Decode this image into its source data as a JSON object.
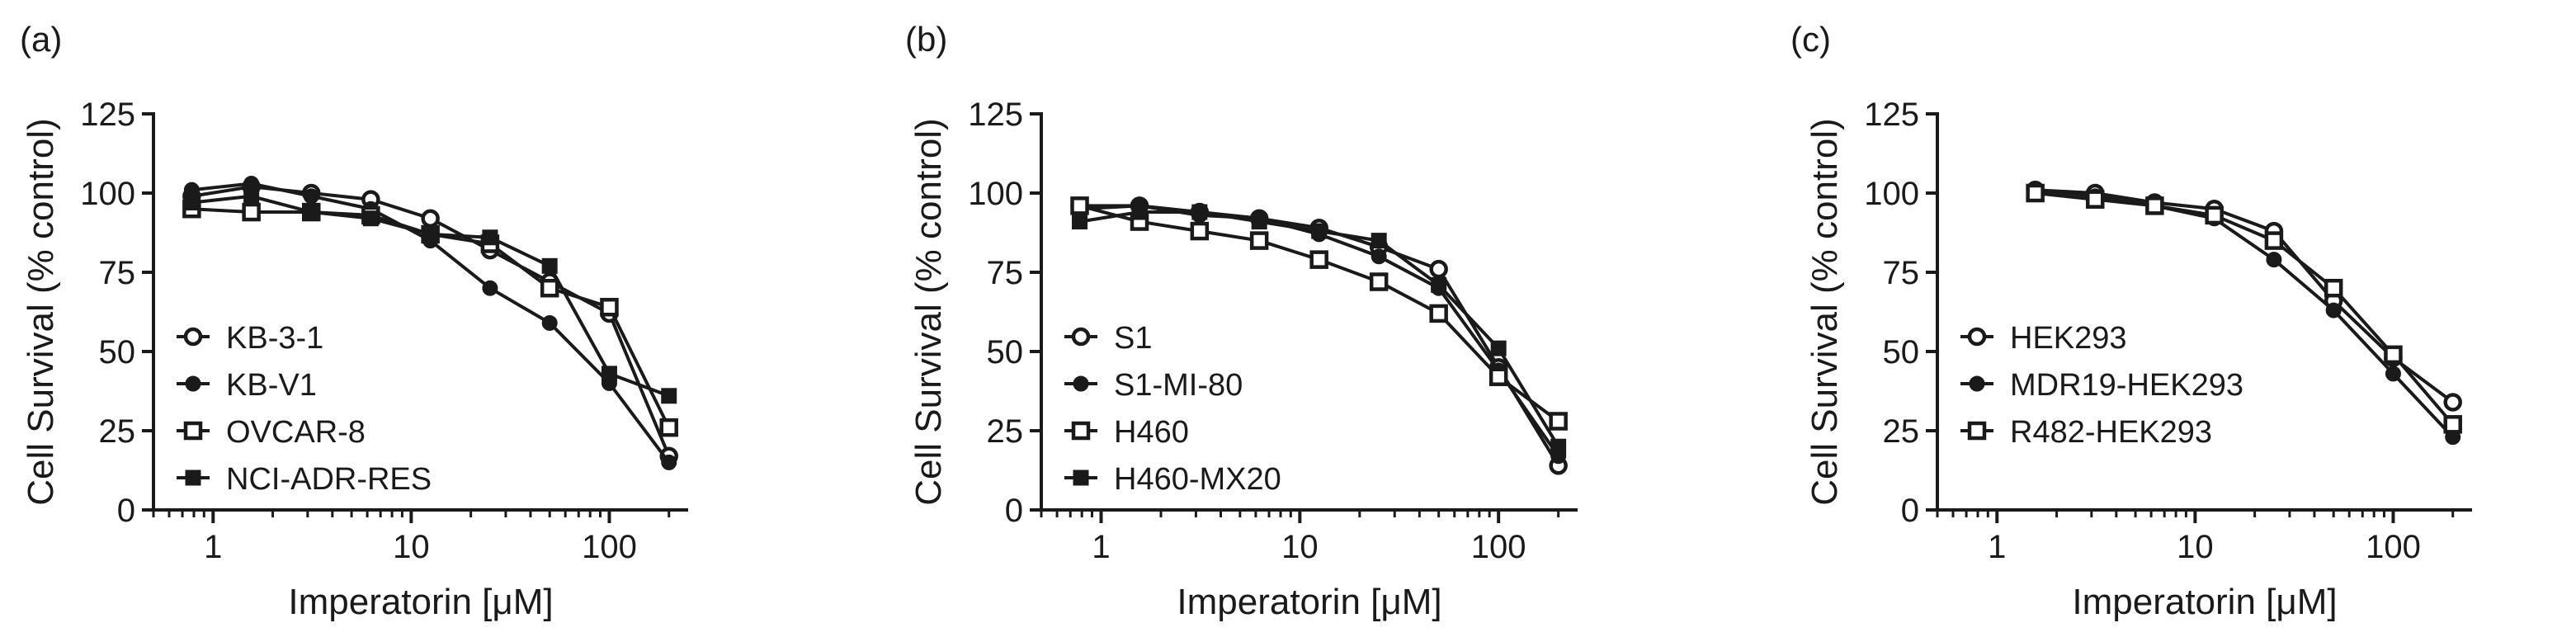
{
  "chart_data": [
    {
      "type": "line",
      "panel_label": "(a)",
      "xlabel": "Imperatorin [μM]",
      "ylabel": "Cell Survival (% control)",
      "xscale": "log",
      "xlim": [
        0.5,
        250
      ],
      "ylim": [
        0,
        125
      ],
      "xticks": [
        1,
        10,
        100
      ],
      "xtick_labels": [
        "1",
        "10",
        "100"
      ],
      "yticks": [
        0,
        25,
        50,
        75,
        100,
        125
      ],
      "ytick_labels": [
        "0",
        "25",
        "50",
        "75",
        "100",
        "125"
      ],
      "legend_position": "bottom-left",
      "x": [
        0.78,
        1.56,
        3.13,
        6.25,
        12.5,
        25,
        50,
        100,
        200
      ],
      "series": [
        {
          "name": "KB-3-1",
          "marker": "open-circle",
          "values": [
            99,
            102,
            100,
            98,
            92,
            82,
            72,
            62,
            17
          ]
        },
        {
          "name": "KB-V1",
          "marker": "filled-circle",
          "values": [
            101,
            103,
            99,
            95,
            85,
            70,
            59,
            40,
            15
          ]
        },
        {
          "name": "OVCAR-8",
          "marker": "open-square",
          "values": [
            95,
            94,
            94,
            93,
            87,
            84,
            70,
            64,
            26
          ]
        },
        {
          "name": "NCI-ADR-RES",
          "marker": "filled-square",
          "values": [
            97,
            99,
            94,
            92,
            87,
            86,
            77,
            43,
            36
          ]
        }
      ]
    },
    {
      "type": "line",
      "panel_label": "(b)",
      "xlabel": "Imperatorin [μM]",
      "ylabel": "Cell Survival (% control)",
      "xscale": "log",
      "xlim": [
        0.5,
        250
      ],
      "ylim": [
        0,
        125
      ],
      "xticks": [
        1,
        10,
        100
      ],
      "xtick_labels": [
        "1",
        "10",
        "100"
      ],
      "yticks": [
        0,
        25,
        50,
        75,
        100,
        125
      ],
      "ytick_labels": [
        "0",
        "25",
        "50",
        "75",
        "100",
        "125"
      ],
      "legend_position": "bottom-left",
      "x": [
        0.78,
        1.56,
        3.13,
        6.25,
        12.5,
        25,
        50,
        100,
        200
      ],
      "series": [
        {
          "name": "S1",
          "marker": "open-circle",
          "values": [
            96,
            96,
            94,
            92,
            89,
            83,
            76,
            45,
            14
          ]
        },
        {
          "name": "S1-MI-80",
          "marker": "filled-circle",
          "values": [
            95,
            96,
            93,
            92,
            87,
            80,
            70,
            44,
            17
          ]
        },
        {
          "name": "H460",
          "marker": "open-square",
          "values": [
            96,
            91,
            88,
            85,
            79,
            72,
            62,
            42,
            28
          ]
        },
        {
          "name": "H460-MX20",
          "marker": "filled-square",
          "values": [
            91,
            94,
            94,
            91,
            88,
            85,
            71,
            51,
            20
          ]
        }
      ]
    },
    {
      "type": "line",
      "panel_label": "(c)",
      "xlabel": "Imperatorin [μM]",
      "ylabel": "Cell Survival (% control)",
      "xscale": "log",
      "xlim": [
        0.5,
        250
      ],
      "ylim": [
        0,
        125
      ],
      "xticks": [
        1,
        10,
        100
      ],
      "xtick_labels": [
        "1",
        "10",
        "100"
      ],
      "yticks": [
        0,
        25,
        50,
        75,
        100,
        125
      ],
      "ytick_labels": [
        "0",
        "25",
        "50",
        "75",
        "100",
        "125"
      ],
      "legend_position": "bottom-left",
      "x": [
        1.56,
        3.13,
        6.25,
        12.5,
        25,
        50,
        100,
        200
      ],
      "series": [
        {
          "name": "HEK293",
          "marker": "open-circle",
          "values": [
            101,
            100,
            97,
            95,
            88,
            66,
            48,
            34
          ]
        },
        {
          "name": "MDR19-HEK293",
          "marker": "filled-circle",
          "values": [
            101,
            99,
            96,
            92,
            79,
            63,
            43,
            23
          ]
        },
        {
          "name": "R482-HEK293",
          "marker": "open-square",
          "values": [
            100,
            98,
            96,
            93,
            85,
            70,
            49,
            27
          ]
        }
      ]
    }
  ]
}
